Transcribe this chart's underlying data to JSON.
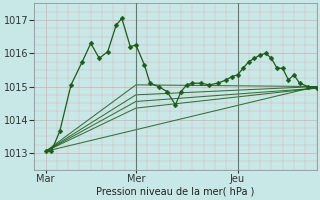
{
  "background_color": "#c8e8e8",
  "plot_bg_color": "#c8e8e8",
  "grid_color_major": "#ddaaaa",
  "grid_color_minor": "#ddaaaa",
  "vline_color": "#667766",
  "line_color": "#1a5c1a",
  "ylim": [
    1012.5,
    1017.5
  ],
  "xlim": [
    0,
    1
  ],
  "yticks": [
    1013,
    1014,
    1015,
    1016,
    1017
  ],
  "xlabel": "Pression niveau de la mer( hPa )",
  "day_labels": [
    "Mar",
    "Mer",
    "Jeu"
  ],
  "day_positions": [
    0.04,
    0.36,
    0.72
  ],
  "vlines_x": [
    0.36,
    0.72
  ],
  "main_line": {
    "x": [
      0.04,
      0.06,
      0.09,
      0.13,
      0.17,
      0.2,
      0.23,
      0.26,
      0.29,
      0.31,
      0.34,
      0.36,
      0.39,
      0.41,
      0.44,
      0.47,
      0.5,
      0.52,
      0.54,
      0.56,
      0.59,
      0.62,
      0.65,
      0.68,
      0.7,
      0.72,
      0.74,
      0.76,
      0.78,
      0.8,
      0.82,
      0.84,
      0.86,
      0.88,
      0.9,
      0.92,
      0.94,
      0.97,
      1.0
    ],
    "y": [
      1013.05,
      1013.05,
      1013.65,
      1015.05,
      1015.75,
      1016.3,
      1015.85,
      1016.05,
      1016.85,
      1017.05,
      1016.2,
      1016.25,
      1015.65,
      1015.1,
      1015.0,
      1014.85,
      1014.45,
      1014.85,
      1015.05,
      1015.1,
      1015.1,
      1015.05,
      1015.1,
      1015.2,
      1015.3,
      1015.35,
      1015.55,
      1015.75,
      1015.85,
      1015.95,
      1016.0,
      1015.85,
      1015.55,
      1015.55,
      1015.2,
      1015.35,
      1015.1,
      1015.0,
      1014.95
    ]
  },
  "trend_lines": [
    {
      "x": [
        0.04,
        0.36,
        1.0
      ],
      "y": [
        1013.05,
        1015.05,
        1015.0
      ]
    },
    {
      "x": [
        0.04,
        0.36,
        1.0
      ],
      "y": [
        1013.05,
        1014.75,
        1015.0
      ]
    },
    {
      "x": [
        0.04,
        0.36,
        1.0
      ],
      "y": [
        1013.05,
        1014.55,
        1014.95
      ]
    },
    {
      "x": [
        0.04,
        0.36,
        1.0
      ],
      "y": [
        1013.05,
        1014.35,
        1014.95
      ]
    },
    {
      "x": [
        0.04,
        1.0
      ],
      "y": [
        1013.05,
        1015.0
      ]
    }
  ]
}
